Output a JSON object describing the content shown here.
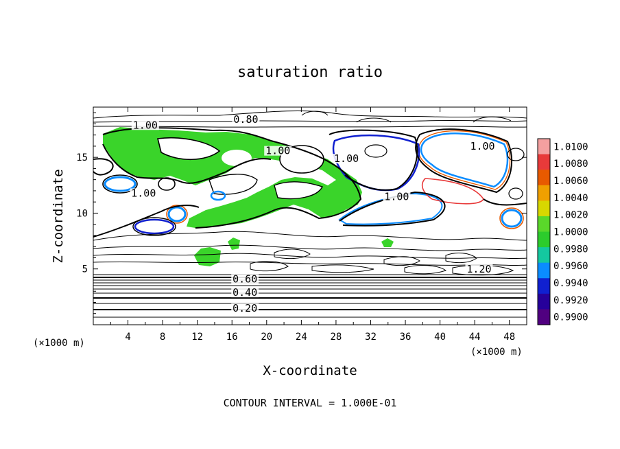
{
  "chart_data": {
    "type": "heatmap",
    "title": "saturation ratio",
    "xlabel": "X-coordinate",
    "ylabel": "Z-coordinate",
    "x_unit_left": "(×1000 m)",
    "x_unit_right": "(×1000 m)",
    "xlim": [
      0,
      50
    ],
    "ylim": [
      0,
      19.5
    ],
    "x_ticks": [
      4,
      8,
      12,
      16,
      20,
      24,
      28,
      32,
      36,
      40,
      44,
      48
    ],
    "y_ticks": [
      5,
      10,
      15
    ],
    "footer": "CONTOUR INTERVAL = 1.000E-01",
    "colorbar": {
      "ticks": [
        "1.0100",
        "1.0080",
        "1.0060",
        "1.0040",
        "1.0020",
        "1.0000",
        "0.9980",
        "0.9960",
        "0.9940",
        "0.9920",
        "0.9900"
      ],
      "colors": [
        "#f4a0a0",
        "#e83a3a",
        "#e85a00",
        "#f0a000",
        "#d8d800",
        "#5ad82a",
        "#2ccc2c",
        "#14c8a0",
        "#0a8cff",
        "#1020d0",
        "#26009a",
        "#500080"
      ]
    },
    "contour_labels": [
      {
        "text": "0.80",
        "x": 17.6,
        "y": 18.2
      },
      {
        "text": "1.00",
        "x": 6.0,
        "y": 17.7
      },
      {
        "text": "1.00",
        "x": 21.3,
        "y": 15.4
      },
      {
        "text": "1.00",
        "x": 29.2,
        "y": 14.7
      },
      {
        "text": "1.00",
        "x": 44.9,
        "y": 15.8
      },
      {
        "text": "1.00",
        "x": 5.8,
        "y": 11.6
      },
      {
        "text": "1.00",
        "x": 35.0,
        "y": 11.3
      },
      {
        "text": "1.20",
        "x": 44.5,
        "y": 4.8
      },
      {
        "text": "0.60",
        "x": 17.5,
        "y": 3.9
      },
      {
        "text": "0.40",
        "x": 17.5,
        "y": 2.7
      },
      {
        "text": "0.20",
        "x": 17.5,
        "y": 1.3
      }
    ]
  }
}
